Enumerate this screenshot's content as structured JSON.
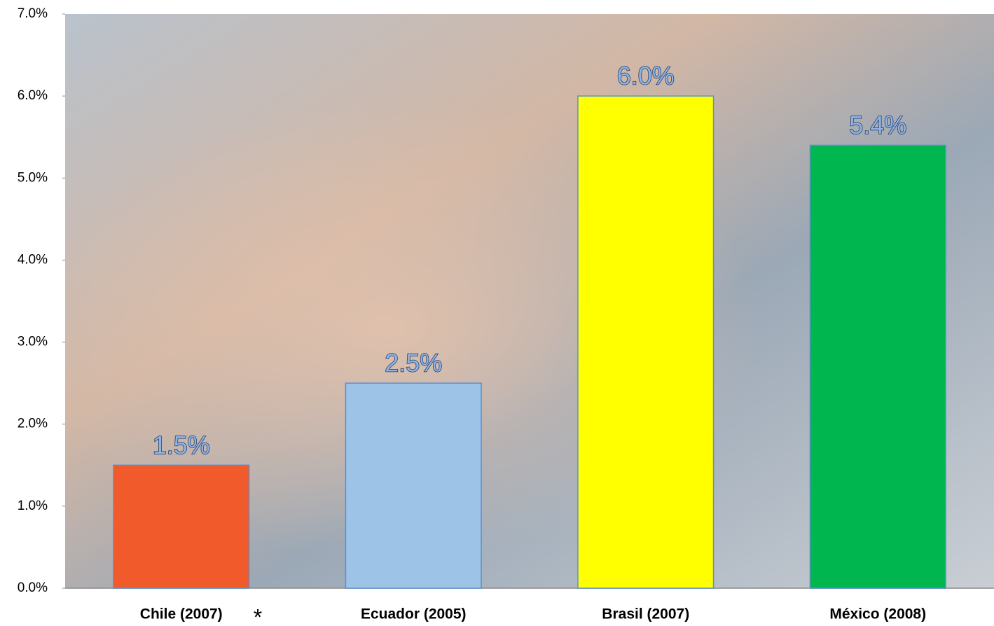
{
  "chart_data": {
    "type": "bar",
    "categories": [
      "Chile (2007)",
      "Ecuador (2005)",
      "Brasil (2007)",
      "México (2008)"
    ],
    "values": [
      1.5,
      2.5,
      6.0,
      5.4
    ],
    "value_labels": [
      "1.5%",
      "2.5%",
      "6.0%",
      "5.4%"
    ],
    "colors": [
      "#f15a2b",
      "#9dc3e6",
      "#ffff00",
      "#00b74f"
    ],
    "annotation": "*",
    "ylim": [
      0,
      7
    ],
    "yticks": [
      {
        "value": 0,
        "label": "0.0%"
      },
      {
        "value": 1,
        "label": "1.0%"
      },
      {
        "value": 2,
        "label": "2.0%"
      },
      {
        "value": 3,
        "label": "3.0%"
      },
      {
        "value": 4,
        "label": "4.0%"
      },
      {
        "value": 5,
        "label": "5.0%"
      },
      {
        "value": 6,
        "label": "6.0%"
      },
      {
        "value": 7,
        "label": "7.0%"
      }
    ]
  }
}
